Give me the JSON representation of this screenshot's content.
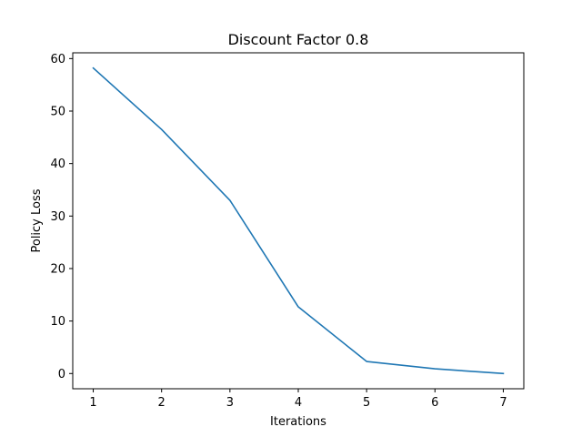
{
  "chart_data": {
    "type": "line",
    "title": "Discount Factor 0.8",
    "xlabel": "Iterations",
    "ylabel": "Policy Loss",
    "x": [
      1,
      2,
      3,
      4,
      5,
      6,
      7
    ],
    "series": [
      {
        "values": [
          58.2,
          46.5,
          33.0,
          12.7,
          2.3,
          0.9,
          0.0
        ],
        "color": "#1f77b4"
      }
    ],
    "xlim": [
      0.7,
      7.3
    ],
    "ylim": [
      -2.9,
      61.1
    ],
    "xticks": [
      1,
      2,
      3,
      4,
      5,
      6,
      7
    ],
    "yticks": [
      0,
      10,
      20,
      30,
      40,
      50,
      60
    ],
    "grid": false
  }
}
